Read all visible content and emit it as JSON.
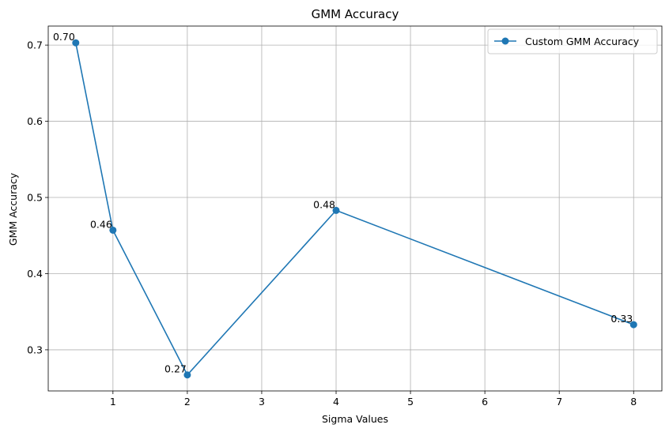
{
  "chart_data": {
    "type": "line",
    "title": "GMM Accuracy",
    "xlabel": "Sigma Values",
    "ylabel": "GMM Accuracy",
    "xlim": [
      0.13,
      8.38
    ],
    "ylim": [
      0.246,
      0.725
    ],
    "xticks": [
      1,
      2,
      3,
      4,
      5,
      6,
      7,
      8
    ],
    "yticks": [
      0.3,
      0.4,
      0.5,
      0.6,
      0.7
    ],
    "grid": true,
    "legend_position": "top-right",
    "series": [
      {
        "name": "Custom GMM Accuracy",
        "color": "#1f77b4",
        "marker": "circle",
        "x": [
          0.5,
          1,
          2,
          4,
          8
        ],
        "y": [
          0.703,
          0.457,
          0.267,
          0.483,
          0.333
        ],
        "labels": [
          "0.70",
          "0.46",
          "0.27",
          "0.48",
          "0.33"
        ]
      }
    ]
  }
}
